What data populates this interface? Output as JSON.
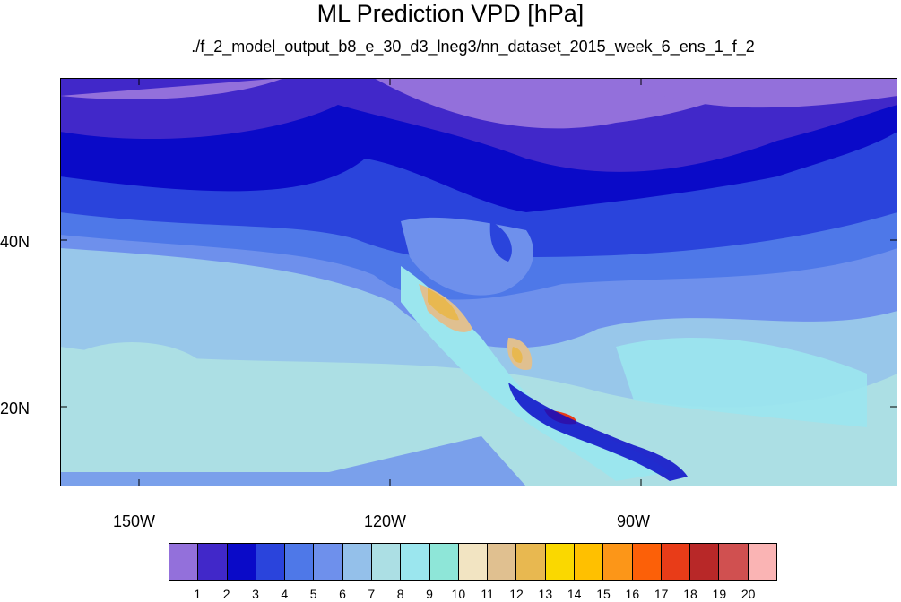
{
  "title": "ML Prediction VPD [hPa]",
  "subtitle": "./f_2_model_output_b8_e_30_d3_lneg3/nn_dataset_2015_week_6_ens_1_f_2",
  "lat_labels": [
    "40N",
    "20N"
  ],
  "lon_labels": [
    "150W",
    "120W",
    "90W"
  ],
  "colorbar": {
    "colors": [
      "#9370db",
      "#4128c9",
      "#0a0ac8",
      "#2a44dc",
      "#4e78e8",
      "#6e90ec",
      "#94c0ea",
      "#acdfe4",
      "#9be6ee",
      "#8ee6d8",
      "#f2e4c2",
      "#e0c090",
      "#e8b850",
      "#fad800",
      "#ffc000",
      "#fc9618",
      "#fc6008",
      "#e83c18",
      "#b82828",
      "#d05050",
      "#fab4b4"
    ],
    "labels": [
      "1",
      "2",
      "3",
      "4",
      "5",
      "6",
      "7",
      "8",
      "9",
      "10",
      "11",
      "12",
      "13",
      "14",
      "15",
      "16",
      "17",
      "18",
      "19",
      "20"
    ]
  }
}
